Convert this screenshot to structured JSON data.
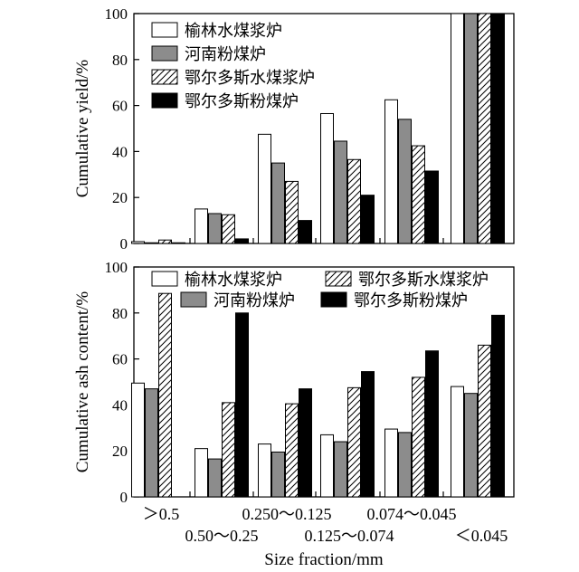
{
  "colors": {
    "yulin_cws": "#ffffff",
    "henan_pc": "#8c8c8c",
    "ordos_cws": "hatch",
    "ordos_pc": "#000000"
  },
  "chart_data": [
    {
      "type": "bar",
      "panel": "top",
      "ylabel": "Cumulative yield/%",
      "ylim": [
        0,
        100
      ],
      "yticks": [
        0,
        20,
        40,
        60,
        80,
        100
      ],
      "grid": false,
      "legend_placement": "top-left",
      "categories": [
        ">0.5",
        "0.50~0.25",
        "0.250~0.125",
        "0.125~0.074",
        "0.074~0.045",
        "<0.045"
      ],
      "series": [
        {
          "name": "榆林水煤浆炉",
          "fill": "white",
          "values": [
            0.8,
            15,
            47.5,
            56.5,
            62.5,
            100
          ]
        },
        {
          "name": "河南粉煤炉",
          "fill": "gray",
          "values": [
            0.3,
            13,
            35,
            44.5,
            54,
            100
          ]
        },
        {
          "name": "鄂尔多斯水煤浆炉",
          "fill": "hatch",
          "values": [
            1.5,
            12.5,
            27,
            36.5,
            42.5,
            100
          ]
        },
        {
          "name": "鄂尔多斯粉煤炉",
          "fill": "black",
          "values": [
            0.3,
            2,
            10,
            21,
            31.5,
            100
          ]
        }
      ]
    },
    {
      "type": "bar",
      "panel": "bottom",
      "ylabel": "Cumulative ash content/%",
      "xlabel": "Size fraction/mm",
      "ylim": [
        0,
        100
      ],
      "yticks": [
        0,
        20,
        40,
        60,
        80,
        100
      ],
      "grid": false,
      "legend_placement": "top",
      "categories": [
        "＞0.5",
        "0.50～0.25",
        "0.250～0.125",
        "0.125～0.074",
        "0.074～0.045",
        "＜0.045"
      ],
      "series": [
        {
          "name": "榆林水煤浆炉",
          "fill": "white",
          "values": [
            49.5,
            21,
            23,
            27,
            29.5,
            48
          ]
        },
        {
          "name": "河南粉煤炉",
          "fill": "gray",
          "values": [
            47,
            16.5,
            19.5,
            24,
            28,
            45
          ]
        },
        {
          "name": "鄂尔多斯水煤浆炉",
          "fill": "hatch",
          "values": [
            88.5,
            41,
            40.5,
            47.5,
            52,
            66
          ]
        },
        {
          "name": "鄂尔多斯粉煤炉",
          "fill": "black",
          "values": [
            null,
            80,
            47,
            54.5,
            63.5,
            79
          ]
        }
      ]
    }
  ]
}
